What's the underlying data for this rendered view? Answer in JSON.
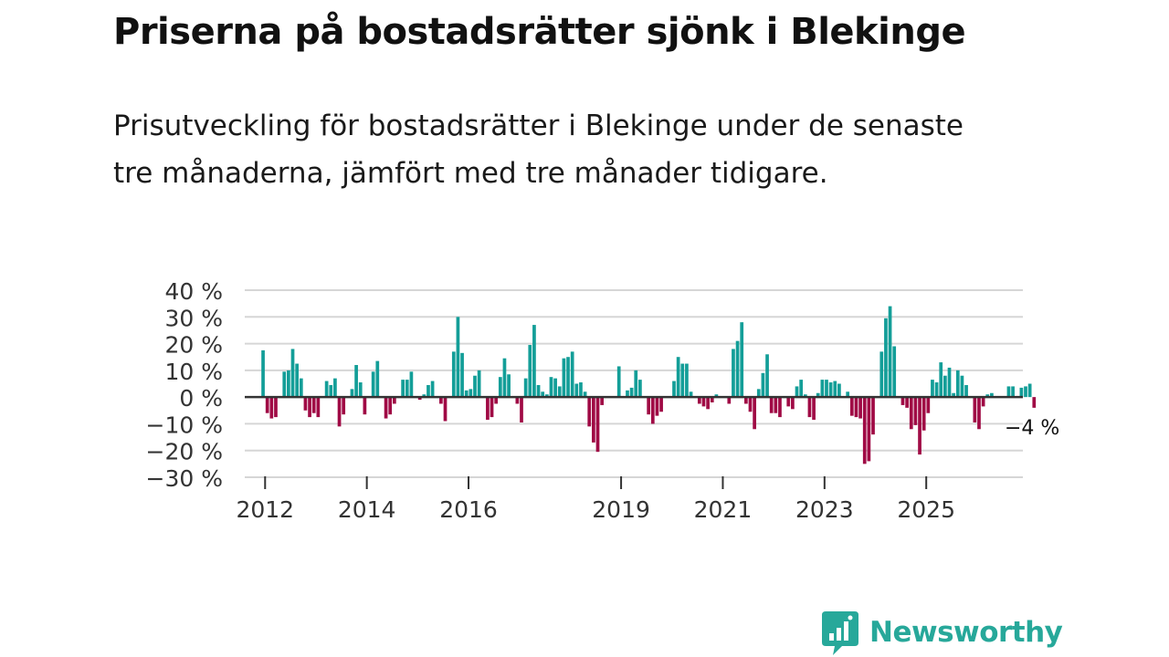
{
  "title": "Priserna på bostadsrätter sjönk i Blekinge",
  "subtitle": "Prisutveckling för bostadsrätter i Blekinge under de senaste tre månaderna, jämfört med tre månader tidigare.",
  "brand": {
    "name": "Newsworthy",
    "color": "#27a89a"
  },
  "colors": {
    "positive": "#139e98",
    "negative": "#a00a45",
    "grid": "#d6d6d6",
    "zero_line": "#333333",
    "axis_text": "#333333"
  },
  "chart_data": {
    "type": "bar",
    "title": "Priserna på bostadsrätter sjönk i Blekinge",
    "xlabel": "",
    "ylabel": "",
    "ylim": [
      -30,
      40
    ],
    "x_range": [
      2011.6,
      2026.9
    ],
    "y_ticks": [
      {
        "value": 40,
        "label": "40 %"
      },
      {
        "value": 30,
        "label": "30 %"
      },
      {
        "value": 20,
        "label": "20 %"
      },
      {
        "value": 10,
        "label": "10 %"
      },
      {
        "value": 0,
        "label": "0 %"
      },
      {
        "value": -10,
        "label": "−10 %"
      },
      {
        "value": -20,
        "label": "−20 %"
      },
      {
        "value": -30,
        "label": "−30 %"
      }
    ],
    "x_ticks": [
      {
        "value": 2012.0,
        "label": "2012"
      },
      {
        "value": 2014.0,
        "label": "2014"
      },
      {
        "value": 2016.0,
        "label": "2016"
      },
      {
        "value": 2019.0,
        "label": "2019"
      },
      {
        "value": 2021.0,
        "label": "2021"
      },
      {
        "value": 2023.0,
        "label": "2023"
      },
      {
        "value": 2025.0,
        "label": "2025"
      }
    ],
    "last_value_label": "−4 %",
    "start": 2011.96,
    "step": 0.0833,
    "values": [
      17.5,
      -6,
      -8,
      -7.5,
      0,
      9.5,
      10,
      18,
      12.5,
      7,
      -5,
      -7.5,
      -6,
      -7.5,
      0,
      6,
      4.5,
      7,
      -11,
      -6.5,
      0,
      3,
      12,
      5.5,
      -6.5,
      0,
      9.5,
      13.5,
      0,
      -8,
      -6.5,
      -2.5,
      0,
      6.5,
      6.5,
      9.5,
      0,
      -1,
      1,
      4.5,
      6,
      0,
      -2.5,
      -9,
      0,
      17,
      30,
      16.5,
      2.5,
      3,
      8,
      10,
      0,
      -8.5,
      -7.5,
      -2.5,
      7.5,
      14.5,
      8.5,
      0,
      -2.5,
      -9.5,
      7,
      19.5,
      27,
      4.5,
      2,
      1,
      7.5,
      7,
      4,
      14.5,
      15,
      17,
      5,
      5.5,
      2,
      -11,
      -17,
      -20.5,
      -3,
      0,
      0,
      0,
      11.5,
      0,
      2.5,
      3.5,
      10,
      6.5,
      0,
      -6.5,
      -10,
      -7,
      -5.5,
      0,
      0,
      6,
      15,
      12.5,
      12.5,
      2,
      0,
      -2.5,
      -3.5,
      -4.5,
      -2,
      1,
      0,
      0,
      -2.5,
      18,
      21,
      28,
      -2.5,
      -5.5,
      -12,
      3,
      9,
      16,
      -6,
      -6,
      -7.5,
      0,
      -3.5,
      -4.5,
      4,
      6.5,
      1,
      -7.5,
      -8.5,
      1.5,
      6.5,
      6.5,
      5.5,
      6,
      5,
      0,
      2,
      -7,
      -7.5,
      -8,
      -25,
      -24,
      -14,
      0,
      17,
      29.5,
      34,
      19,
      0,
      -3,
      -4,
      -12,
      -10.5,
      -21.5,
      -12.5,
      -6,
      6.5,
      5.5,
      13,
      8,
      11,
      1.5,
      10,
      8,
      4.5,
      0,
      -9.5,
      -12,
      -3.5,
      1,
      1.5,
      0,
      0,
      0,
      4,
      4,
      0,
      3.5,
      4,
      5,
      -4
    ]
  }
}
